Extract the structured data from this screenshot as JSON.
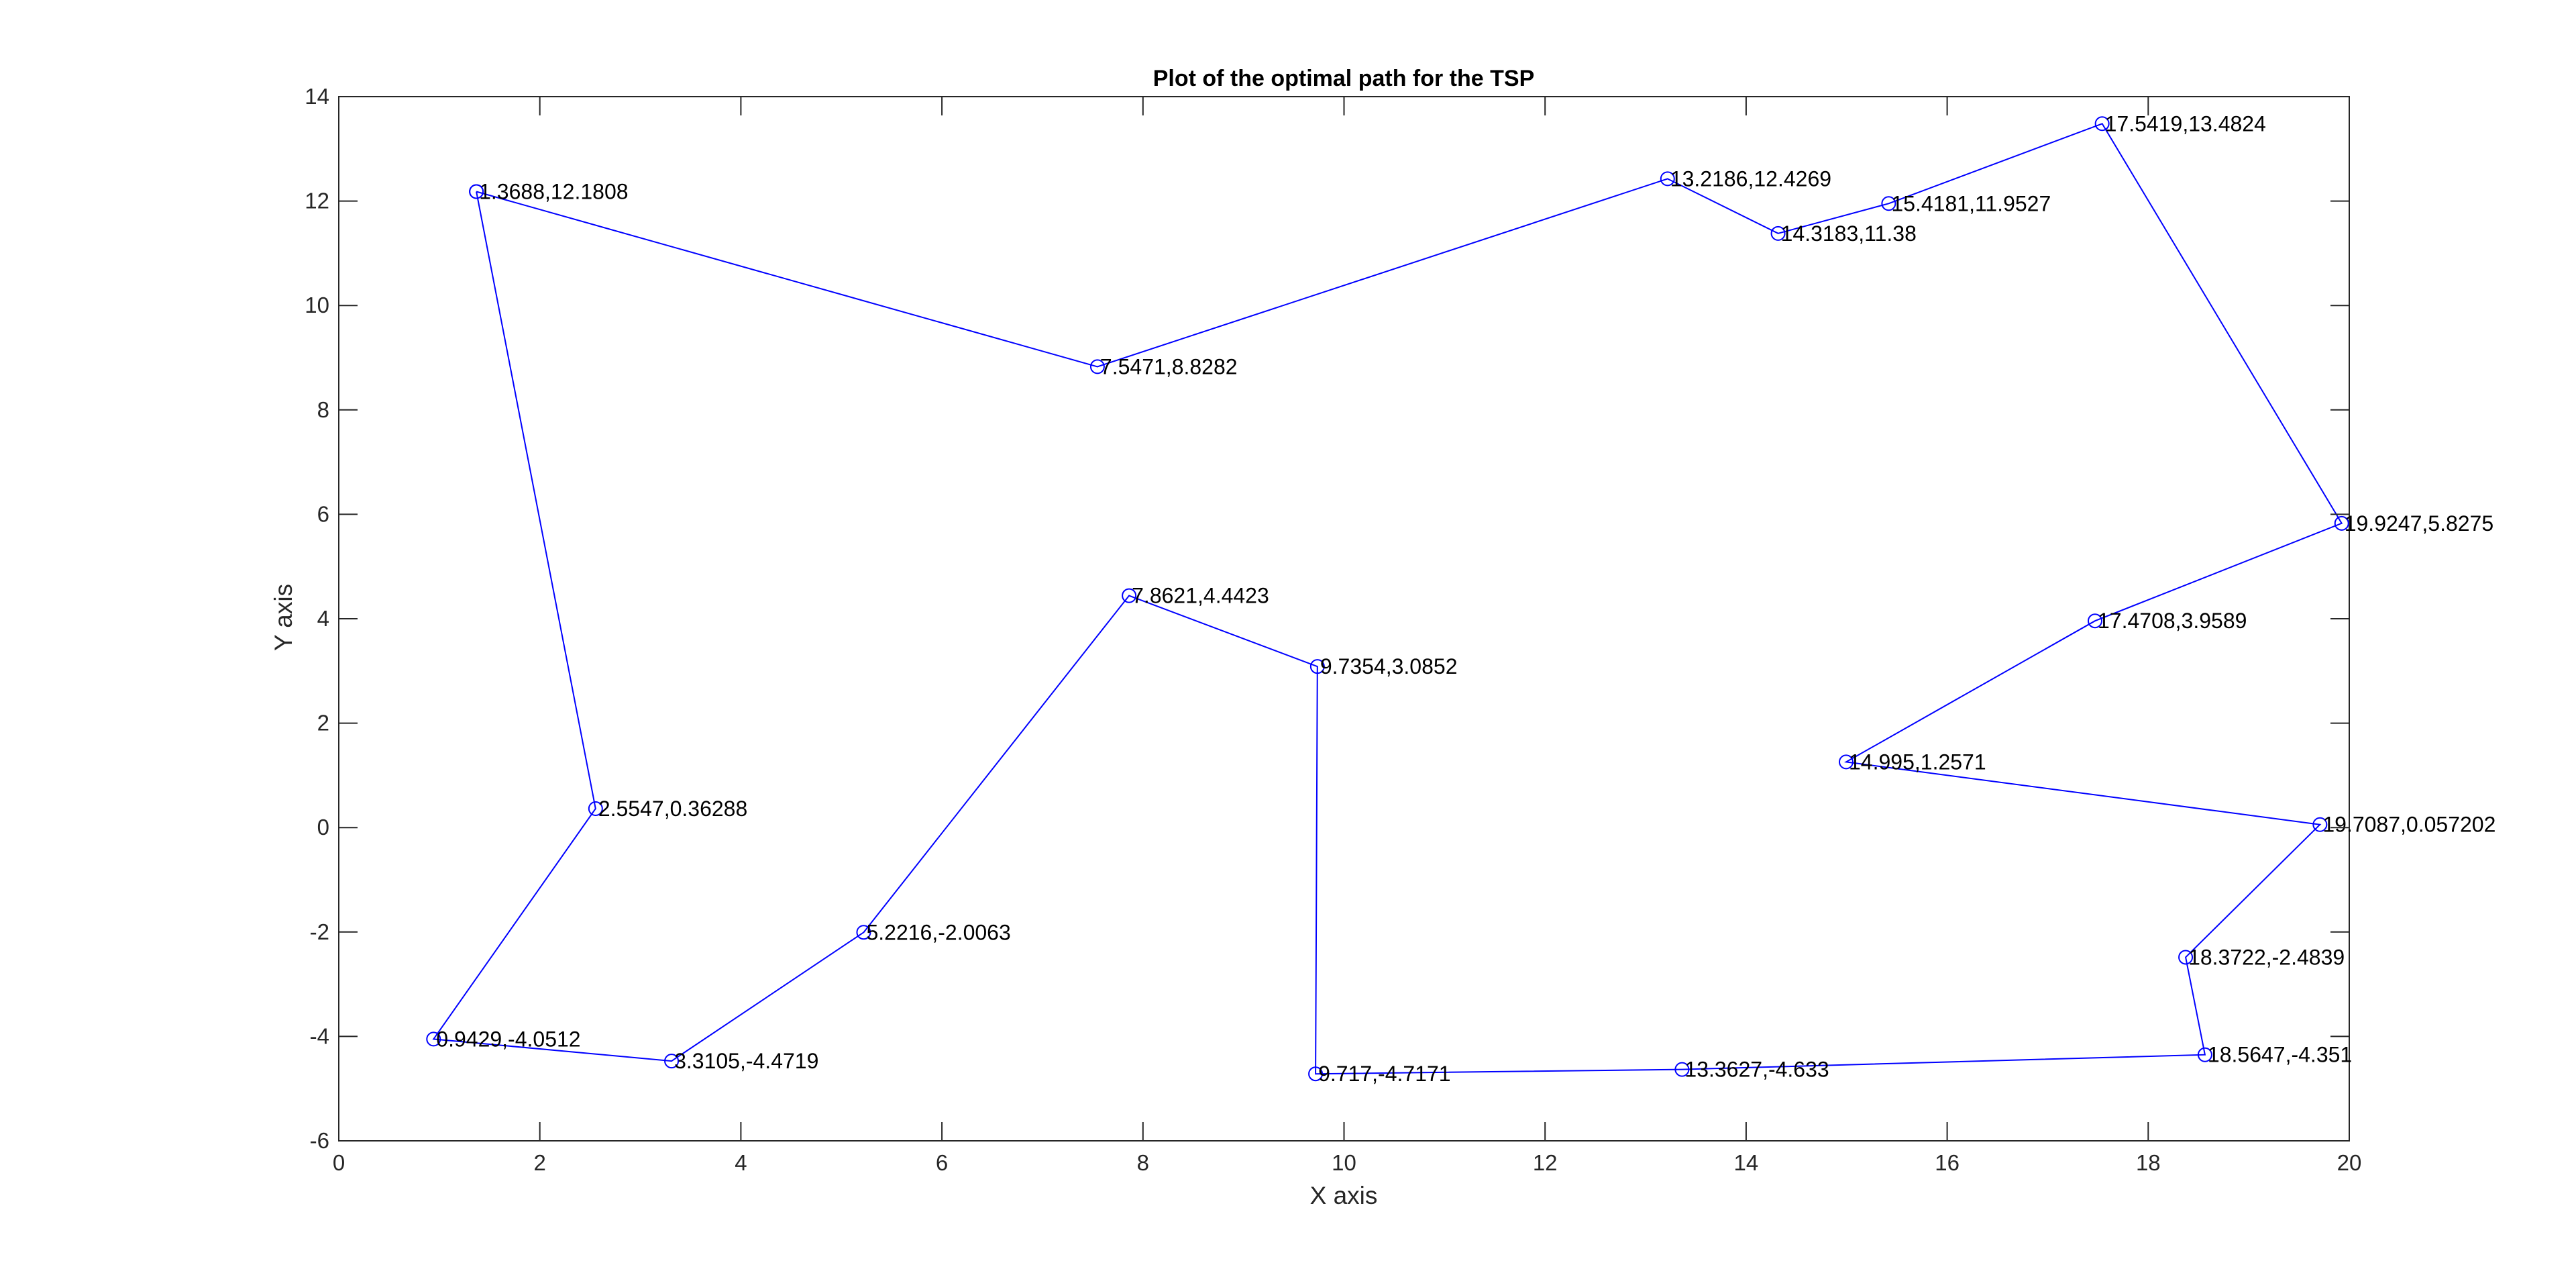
{
  "chart_data": {
    "type": "line",
    "title": "Plot of the optimal path for the TSP",
    "xlabel": "X axis",
    "ylabel": "Y axis",
    "xlim": [
      0,
      20
    ],
    "ylim": [
      -6,
      14
    ],
    "xticks": [
      0,
      2,
      4,
      6,
      8,
      10,
      12,
      14,
      16,
      18,
      20
    ],
    "yticks": [
      -6,
      -4,
      -2,
      0,
      2,
      4,
      6,
      8,
      10,
      12,
      14
    ],
    "grid": false,
    "line_color": "#0000ff",
    "marker": "circle",
    "series": [
      {
        "points": [
          {
            "x": 1.3688,
            "y": 12.1808,
            "label": "1.3688,12.1808"
          },
          {
            "x": 7.5471,
            "y": 8.8282,
            "label": "7.5471,8.8282"
          },
          {
            "x": 13.2186,
            "y": 12.4269,
            "label": "13.2186,12.4269"
          },
          {
            "x": 14.3183,
            "y": 11.38,
            "label": "14.3183,11.38"
          },
          {
            "x": 15.4181,
            "y": 11.9527,
            "label": "15.4181,11.9527"
          },
          {
            "x": 17.5419,
            "y": 13.4824,
            "label": "17.5419,13.4824"
          },
          {
            "x": 19.9247,
            "y": 5.8275,
            "label": "19.9247,5.8275"
          },
          {
            "x": 17.4708,
            "y": 3.9589,
            "label": "17.4708,3.9589"
          },
          {
            "x": 14.995,
            "y": 1.2571,
            "label": "14.995,1.2571"
          },
          {
            "x": 19.7087,
            "y": 0.057202,
            "label": "19.7087,0.057202"
          },
          {
            "x": 18.3722,
            "y": -2.4839,
            "label": "18.3722,-2.4839"
          },
          {
            "x": 18.5647,
            "y": -4.351,
            "label": "18.5647,-4.351"
          },
          {
            "x": 13.3627,
            "y": -4.633,
            "label": "13.3627,-4.633"
          },
          {
            "x": 9.717,
            "y": -4.7171,
            "label": "9.717,-4.7171"
          },
          {
            "x": 9.7354,
            "y": 3.0852,
            "label": "9.7354,3.0852"
          },
          {
            "x": 7.8621,
            "y": 4.4423,
            "label": "7.8621,4.4423"
          },
          {
            "x": 5.2216,
            "y": -2.0063,
            "label": "5.2216,-2.0063"
          },
          {
            "x": 3.3105,
            "y": -4.4719,
            "label": "3.3105,-4.4719"
          },
          {
            "x": 0.9429,
            "y": -4.0512,
            "label": "0.9429,-4.0512"
          },
          {
            "x": 2.5547,
            "y": 0.36288,
            "label": "2.5547,0.36288"
          },
          {
            "x": 1.3688,
            "y": 12.1808,
            "label": ""
          }
        ]
      }
    ]
  }
}
